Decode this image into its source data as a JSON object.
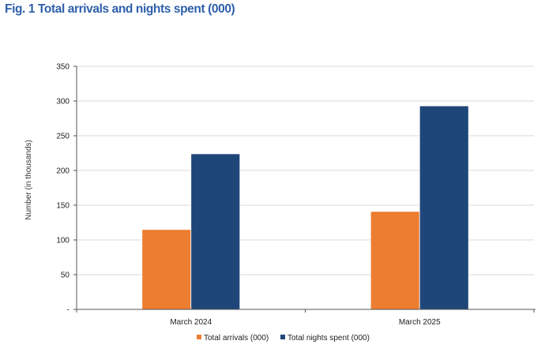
{
  "figure": {
    "title": "Fig. 1 Total arrivals and nights spent (000)"
  },
  "colors": {
    "title": "#2e5faa",
    "arrivals": "#ed7d31",
    "nights": "#1f4679",
    "grid": "#d9d9d9",
    "axis": "#555555"
  },
  "chart_data": {
    "type": "bar",
    "title": "",
    "categories": [
      "March 2024",
      "March 2025"
    ],
    "series": [
      {
        "name": "Total arrivals (000)",
        "values": [
          115,
          141
        ]
      },
      {
        "name": "Total nights spent (000)",
        "values": [
          224,
          293
        ]
      }
    ],
    "xlabel": "",
    "ylabel": "Number (in thousands)",
    "ylim": [
      0,
      350
    ],
    "yticks": [
      0,
      50,
      100,
      150,
      200,
      250,
      300,
      350
    ],
    "ytick_labels": [
      "-",
      "50",
      "100",
      "150",
      "200",
      "250",
      "300",
      "350"
    ],
    "grid": true,
    "legend_position": "bottom"
  }
}
